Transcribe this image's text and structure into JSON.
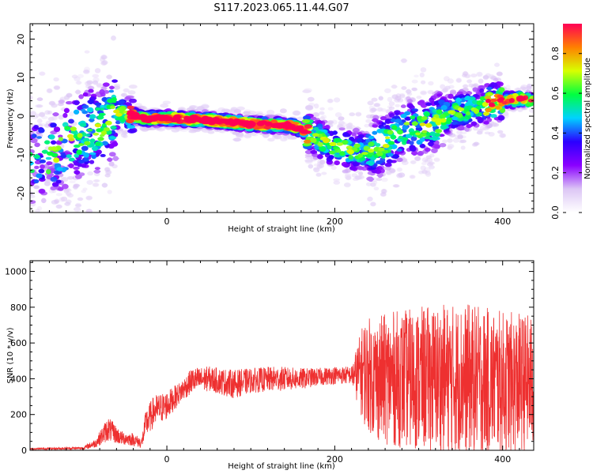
{
  "title": "S117.2023.065.11.44.G07",
  "chart_data": [
    {
      "type": "heatmap",
      "xlabel": "Height of straight line (km)",
      "ylabel": "Frequency (Hz)",
      "xlim": [
        -163,
        437
      ],
      "ylim": [
        -25,
        24
      ],
      "xticks": [
        0,
        200,
        400
      ],
      "yticks": [
        -20,
        -10,
        0,
        10,
        20
      ],
      "colorbar": {
        "label": "Normalized spectral amplitude",
        "range": [
          0.0,
          0.95
        ],
        "ticks": [
          0.0,
          0.2,
          0.4,
          0.6,
          0.8
        ],
        "colormap": [
          "#ffffff",
          "#dcc6f5",
          "#8a00ff",
          "#2b00ff",
          "#00d2ff",
          "#00ff40",
          "#d8ff00",
          "#ff8000",
          "#ff0055"
        ]
      },
      "ridge": {
        "x": [
          -140,
          -100,
          -80,
          -60,
          -45,
          -30,
          0,
          50,
          100,
          150,
          175,
          190,
          200,
          220,
          240,
          260,
          280,
          300,
          320,
          340,
          360,
          380,
          400,
          420,
          437
        ],
        "y": [
          -11,
          -4,
          -3,
          1,
          0.5,
          -0.5,
          -0.5,
          -1,
          -2,
          -2.5,
          -5,
          -7,
          -8,
          -9,
          -9,
          -7,
          -4,
          -3,
          -2,
          1,
          2,
          3,
          4,
          4.5,
          4
        ]
      }
    },
    {
      "type": "line",
      "xlabel": "Height of straight line (km)",
      "ylabel": "SNR (10 * v/v)",
      "xlim": [
        -163,
        437
      ],
      "ylim": [
        0,
        1060
      ],
      "xticks": [
        0,
        200,
        400
      ],
      "yticks": [
        0,
        200,
        400,
        600,
        800,
        1000
      ],
      "series_color": "#ee3030",
      "envelope": {
        "x": [
          -163,
          -100,
          -85,
          -70,
          -55,
          -40,
          -30,
          -25,
          -15,
          0,
          15,
          30,
          50,
          80,
          100,
          130,
          160,
          180,
          200,
          220,
          235,
          250,
          270,
          300,
          330,
          360,
          400,
          437
        ],
        "mean": [
          8,
          12,
          40,
          120,
          70,
          60,
          40,
          150,
          220,
          250,
          320,
          390,
          400,
          370,
          390,
          400,
          400,
          410,
          420,
          420,
          440,
          400,
          400,
          400,
          400,
          400,
          380,
          380
        ],
        "spread": [
          5,
          8,
          25,
          70,
          40,
          35,
          30,
          80,
          90,
          80,
          60,
          70,
          70,
          80,
          70,
          70,
          60,
          50,
          50,
          50,
          300,
          350,
          380,
          400,
          420,
          420,
          400,
          380
        ]
      }
    }
  ]
}
